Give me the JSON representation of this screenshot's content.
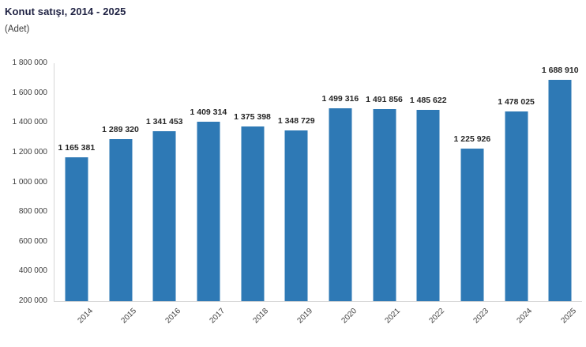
{
  "header": {
    "title": "Konut satışı, 2014 - 2025",
    "subtitle": "(Adet)"
  },
  "colors": {
    "bar": "#2e79b5",
    "axis_line": "#d6d6d6",
    "title_text": "#1e2142",
    "tick_text": "#3d3d3d",
    "value_text": "#262626"
  },
  "chart_data": {
    "type": "bar",
    "title": "Konut satışı, 2014 - 2025",
    "ylabel": "(Adet)",
    "xlabel": "",
    "categories": [
      "2014",
      "2015",
      "2016",
      "2017",
      "2018",
      "2019",
      "2020",
      "2021",
      "2022",
      "2023",
      "2024",
      "2025"
    ],
    "values": [
      1165381,
      1289320,
      1341453,
      1409314,
      1375398,
      1348729,
      1499316,
      1491856,
      1485622,
      1225926,
      1478025,
      1688910
    ],
    "value_labels": [
      "1 165 381",
      "1 289 320",
      "1 341 453",
      "1 409 314",
      "1 375 398",
      "1 348 729",
      "1 499 316",
      "1 491 856",
      "1 485 622",
      "1 225 926",
      "1 478 025",
      "1 688 910"
    ],
    "ylim": [
      200000,
      1800000
    ],
    "ytick_step": 200000,
    "ytick_labels": [
      "1 800 000",
      "1 600 000",
      "1 400 000",
      "1 200 000",
      "1 000 000",
      "800 000",
      "600 000",
      "400 000",
      "200 000"
    ],
    "grid": false,
    "legend": false,
    "bar_orientation": "vertical",
    "xtick_rotation_deg": 45
  }
}
